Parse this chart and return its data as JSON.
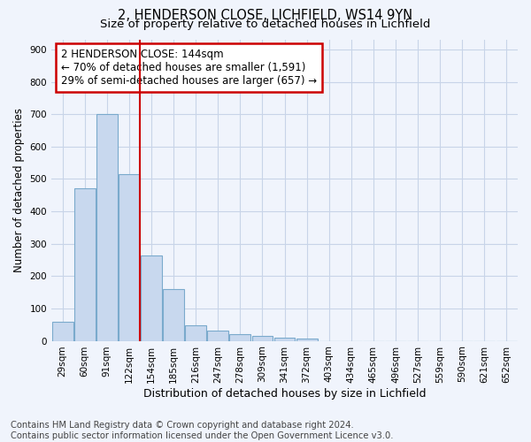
{
  "title1": "2, HENDERSON CLOSE, LICHFIELD, WS14 9YN",
  "title2": "Size of property relative to detached houses in Lichfield",
  "xlabel": "Distribution of detached houses by size in Lichfield",
  "ylabel": "Number of detached properties",
  "footer": "Contains HM Land Registry data © Crown copyright and database right 2024.\nContains public sector information licensed under the Open Government Licence v3.0.",
  "categories": [
    "29sqm",
    "60sqm",
    "91sqm",
    "122sqm",
    "154sqm",
    "185sqm",
    "216sqm",
    "247sqm",
    "278sqm",
    "309sqm",
    "341sqm",
    "372sqm",
    "403sqm",
    "434sqm",
    "465sqm",
    "496sqm",
    "527sqm",
    "559sqm",
    "590sqm",
    "621sqm",
    "652sqm"
  ],
  "values": [
    60,
    470,
    700,
    515,
    265,
    160,
    47,
    32,
    20,
    15,
    10,
    7,
    0,
    0,
    0,
    0,
    0,
    0,
    0,
    0,
    0
  ],
  "bar_color": "#c8d8ee",
  "bar_edge_color": "#7aaacc",
  "vline_x": 3.5,
  "vline_color": "#cc0000",
  "annotation_text": "2 HENDERSON CLOSE: 144sqm\n← 70% of detached houses are smaller (1,591)\n29% of semi-detached houses are larger (657) →",
  "annotation_box_color": "white",
  "annotation_box_edge": "#cc0000",
  "ylim": [
    0,
    930
  ],
  "yticks": [
    0,
    100,
    200,
    300,
    400,
    500,
    600,
    700,
    800,
    900
  ],
  "grid_color": "#c8d4e8",
  "background_color": "#f0f4fc",
  "title1_fontsize": 10.5,
  "title2_fontsize": 9.5,
  "footer_fontsize": 7.2,
  "tick_fontsize": 7.5,
  "ylabel_fontsize": 8.5,
  "xlabel_fontsize": 9.0,
  "annot_fontsize": 8.5
}
